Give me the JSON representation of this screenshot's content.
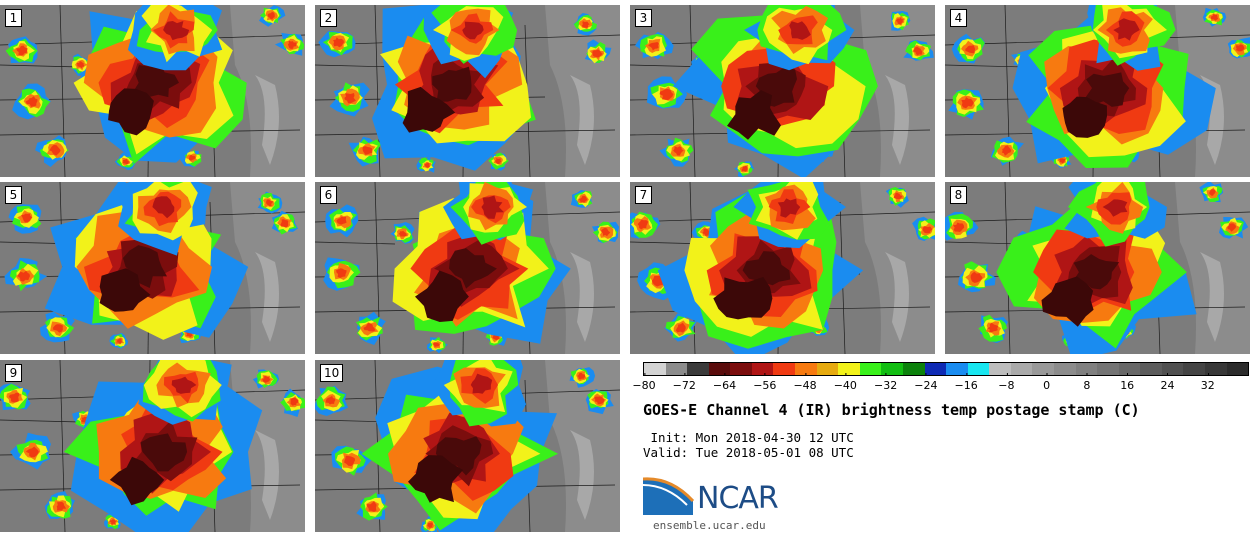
{
  "panels": [
    {
      "label": "1"
    },
    {
      "label": "2"
    },
    {
      "label": "3"
    },
    {
      "label": "4"
    },
    {
      "label": "5"
    },
    {
      "label": "6"
    },
    {
      "label": "7"
    },
    {
      "label": "8"
    },
    {
      "label": "9"
    },
    {
      "label": "10"
    }
  ],
  "colorbar": {
    "colors": [
      "#d3d3d3",
      "#8c8c8c",
      "#3b3b3b",
      "#5a0c0c",
      "#7b0d0d",
      "#b01515",
      "#f03a12",
      "#f77a10",
      "#e6aa0f",
      "#f2f21a",
      "#39f01a",
      "#12be12",
      "#0c820c",
      "#0e2ab4",
      "#1a8cf0",
      "#19e6f0",
      "#bdbdbd",
      "#aaaaaa",
      "#999999",
      "#8c8c8c",
      "#808080",
      "#747474",
      "#686868",
      "#5c5c5c",
      "#505050",
      "#444444",
      "#383838",
      "#2c2c2c"
    ],
    "ticks": [
      "−80",
      "−72",
      "−64",
      "−56",
      "−48",
      "−40",
      "−32",
      "−24",
      "−16",
      "−8",
      "0",
      "8",
      "16",
      "24",
      "32"
    ],
    "range": [
      -80,
      40
    ]
  },
  "title": "GOES-E Channel 4 (IR) brightness temp postage stamp (C)",
  "init": " Init: Mon 2018-04-30 12 UTC",
  "valid": "Valid: Tue 2018-05-01 08 UTC",
  "logo": {
    "word": "NCAR",
    "url": "ensemble.ucar.edu"
  }
}
